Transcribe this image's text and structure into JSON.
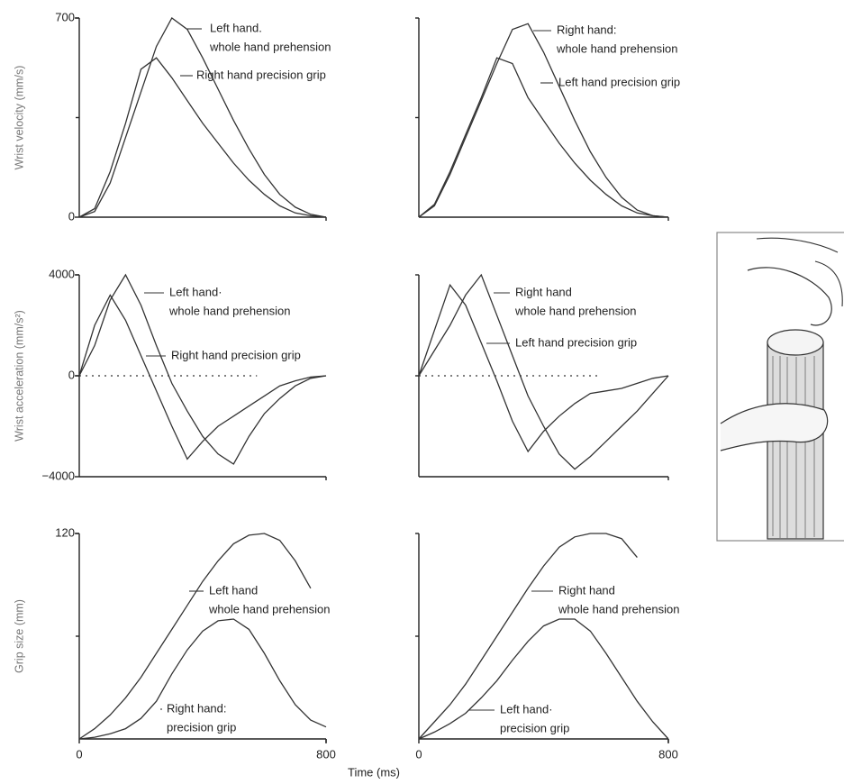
{
  "chart_data": [
    {
      "type": "line",
      "ylabel": "Wrist velocity (mm/s)",
      "xlim": [
        0,
        800
      ],
      "ylim": [
        0,
        700
      ],
      "yticks": [
        0,
        700
      ],
      "x": [
        0,
        50,
        100,
        150,
        200,
        250,
        300,
        350,
        400,
        450,
        500,
        550,
        600,
        650,
        700,
        750,
        800
      ],
      "series": [
        {
          "name": [
            "Left hand.",
            "whole hand prehension"
          ],
          "color": "#333",
          "values": [
            0,
            20,
            120,
            280,
            440,
            600,
            700,
            660,
            560,
            450,
            340,
            240,
            150,
            80,
            35,
            10,
            0
          ]
        },
        {
          "name": [
            "Right hand precision grip"
          ],
          "color": "#333",
          "values": [
            0,
            30,
            160,
            330,
            520,
            560,
            490,
            410,
            330,
            260,
            190,
            130,
            80,
            40,
            15,
            5,
            0
          ]
        }
      ]
    },
    {
      "type": "line",
      "xlim": [
        0,
        800
      ],
      "ylim": [
        0,
        700
      ],
      "x": [
        0,
        50,
        100,
        150,
        200,
        250,
        300,
        350,
        400,
        450,
        500,
        550,
        600,
        650,
        700,
        750,
        800
      ],
      "series": [
        {
          "name": [
            "Right hand:",
            "whole hand prehension"
          ],
          "color": "#333",
          "values": [
            0,
            40,
            150,
            280,
            410,
            540,
            660,
            680,
            580,
            460,
            340,
            230,
            140,
            70,
            25,
            5,
            0
          ]
        },
        {
          "name": [
            "Left hand precision grip"
          ],
          "color": "#333",
          "values": [
            0,
            45,
            160,
            290,
            420,
            560,
            540,
            420,
            340,
            260,
            190,
            130,
            80,
            40,
            15,
            5,
            0
          ]
        }
      ]
    },
    {
      "type": "line",
      "ylabel": "Wrist acceleration (mm/s²)",
      "xlim": [
        0,
        800
      ],
      "ylim": [
        -4000,
        4000
      ],
      "yticks": [
        {
          "value": -4000,
          "label": "−4000"
        },
        0,
        4000
      ],
      "zero_line": true,
      "x": [
        0,
        50,
        100,
        150,
        200,
        250,
        300,
        350,
        400,
        450,
        500,
        550,
        600,
        650,
        700,
        750,
        800
      ],
      "series": [
        {
          "name": [
            "Left hand·",
            "whole hand prehension"
          ],
          "color": "#333",
          "values": [
            0,
            1200,
            3000,
            4000,
            2800,
            1200,
            -300,
            -1400,
            -2400,
            -3100,
            -3500,
            -2400,
            -1500,
            -900,
            -400,
            -100,
            0
          ]
        },
        {
          "name": [
            "Right hand precision grip"
          ],
          "color": "#333",
          "values": [
            0,
            2000,
            3200,
            2200,
            800,
            -600,
            -2000,
            -3300,
            -2600,
            -2000,
            -1600,
            -1200,
            -800,
            -400,
            -200,
            -50,
            0
          ]
        }
      ]
    },
    {
      "type": "line",
      "xlim": [
        0,
        800
      ],
      "ylim": [
        -4000,
        4000
      ],
      "zero_line": true,
      "x": [
        0,
        50,
        100,
        150,
        200,
        250,
        300,
        350,
        400,
        450,
        500,
        550,
        600,
        650,
        700,
        750,
        800
      ],
      "series": [
        {
          "name": [
            "Right hand",
            "whole hand prehension"
          ],
          "color": "#333",
          "values": [
            0,
            1000,
            2000,
            3200,
            4000,
            2400,
            800,
            -800,
            -2000,
            -3100,
            -3700,
            -3200,
            -2600,
            -2000,
            -1400,
            -700,
            0
          ]
        },
        {
          "name": [
            "Left hand precision grip"
          ],
          "color": "#333",
          "values": [
            0,
            1800,
            3600,
            2800,
            1300,
            -200,
            -1800,
            -3000,
            -2200,
            -1600,
            -1100,
            -700,
            -600,
            -500,
            -300,
            -100,
            0
          ]
        }
      ]
    },
    {
      "type": "line",
      "ylabel": "Grip size (mm)",
      "xlabel": "Time (ms)",
      "xlim": [
        0,
        800
      ],
      "ylim": [
        0,
        120
      ],
      "yticks": [
        120
      ],
      "xticks": [
        0,
        800
      ],
      "x": [
        0,
        50,
        100,
        150,
        200,
        250,
        300,
        350,
        400,
        450,
        500,
        550,
        600,
        650,
        700,
        750,
        800
      ],
      "series": [
        {
          "name": [
            "Left hand",
            "whole hand prehension"
          ],
          "color": "#333",
          "values": [
            0,
            6,
            14,
            24,
            36,
            50,
            64,
            78,
            92,
            104,
            114,
            119,
            120,
            116,
            104,
            88,
            null
          ]
        },
        {
          "name": [
            "Right hand:",
            "precision grip"
          ],
          "color": "#333",
          "values": [
            0,
            1,
            3,
            6,
            12,
            22,
            38,
            52,
            63,
            69,
            70,
            64,
            50,
            34,
            20,
            11,
            7
          ]
        }
      ]
    },
    {
      "type": "line",
      "xlim": [
        0,
        800
      ],
      "ylim": [
        0,
        120
      ],
      "xticks": [
        0,
        800
      ],
      "x": [
        0,
        50,
        100,
        150,
        200,
        250,
        300,
        350,
        400,
        450,
        500,
        550,
        600,
        650,
        700,
        750,
        800
      ],
      "series": [
        {
          "name": [
            "Right hand",
            "whole hand prehension"
          ],
          "color": "#333",
          "values": [
            0,
            10,
            20,
            32,
            46,
            60,
            74,
            88,
            101,
            112,
            118,
            120,
            120,
            117,
            106,
            null,
            null
          ]
        },
        {
          "name": [
            "Left hand·",
            "precision grip"
          ],
          "color": "#333",
          "values": [
            0,
            4,
            9,
            15,
            24,
            34,
            46,
            57,
            66,
            70,
            70,
            63,
            50,
            36,
            22,
            10,
            0
          ]
        }
      ]
    }
  ]
}
